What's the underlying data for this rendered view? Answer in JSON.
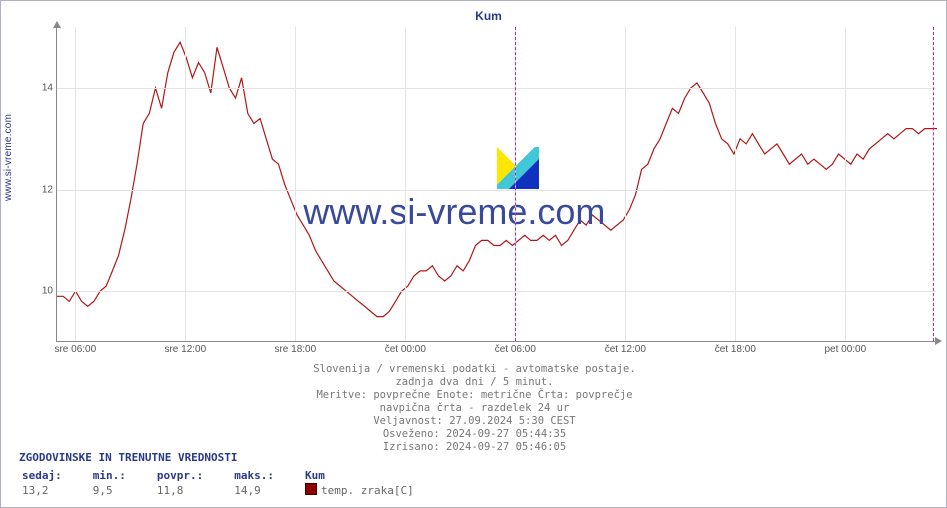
{
  "credit_vertical": "www.si-vreme.com",
  "chart": {
    "title": "Kum",
    "title_color": "#2a3a8a",
    "line_color": "#b01818",
    "background_color": "#ffffff",
    "grid_color": "#e4e4e4",
    "axis_color": "#888888",
    "day_marker_color": "#c020c0",
    "ylim": [
      9,
      15.2
    ],
    "yticks": [
      10,
      12,
      14
    ],
    "x_labels": [
      "sre 06:00",
      "sre 12:00",
      "sre 18:00",
      "čet 00:00",
      "čet 06:00",
      "čet 12:00",
      "čet 18:00",
      "pet 00:00"
    ],
    "x_hour_span": 48,
    "x_start_hour": 5,
    "day_markers_at_label_index": [
      4,
      8
    ],
    "series": [
      9.9,
      9.9,
      9.8,
      10.0,
      9.8,
      9.7,
      9.8,
      10.0,
      10.1,
      10.4,
      10.7,
      11.2,
      11.8,
      12.5,
      13.3,
      13.5,
      14.0,
      13.6,
      14.3,
      14.7,
      14.9,
      14.6,
      14.2,
      14.5,
      14.3,
      13.9,
      14.8,
      14.4,
      14.0,
      13.8,
      14.2,
      13.5,
      13.3,
      13.4,
      13.0,
      12.6,
      12.5,
      12.1,
      11.8,
      11.5,
      11.3,
      11.1,
      10.8,
      10.6,
      10.4,
      10.2,
      10.1,
      10.0,
      9.9,
      9.8,
      9.7,
      9.6,
      9.5,
      9.5,
      9.6,
      9.8,
      10.0,
      10.1,
      10.3,
      10.4,
      10.4,
      10.5,
      10.3,
      10.2,
      10.3,
      10.5,
      10.4,
      10.6,
      10.9,
      11.0,
      11.0,
      10.9,
      10.9,
      11.0,
      10.9,
      11.0,
      11.1,
      11.0,
      11.0,
      11.1,
      11.0,
      11.1,
      10.9,
      11.0,
      11.2,
      11.4,
      11.3,
      11.5,
      11.4,
      11.3,
      11.2,
      11.3,
      11.4,
      11.6,
      11.9,
      12.4,
      12.5,
      12.8,
      13.0,
      13.3,
      13.6,
      13.5,
      13.8,
      14.0,
      14.1,
      13.9,
      13.7,
      13.3,
      13.0,
      12.9,
      12.7,
      13.0,
      12.9,
      13.1,
      12.9,
      12.7,
      12.8,
      12.9,
      12.7,
      12.5,
      12.6,
      12.7,
      12.5,
      12.6,
      12.5,
      12.4,
      12.5,
      12.7,
      12.6,
      12.5,
      12.7,
      12.6,
      12.8,
      12.9,
      13.0,
      13.1,
      13.0,
      13.1,
      13.2,
      13.2,
      13.1,
      13.2,
      13.2,
      13.2
    ],
    "watermark_text": "www.si-vreme.com",
    "watermark_color": "#3a4a9a"
  },
  "meta": {
    "line1": "Slovenija / vremenski podatki - avtomatske postaje.",
    "line2": "zadnja dva dni / 5 minut.",
    "line3": "Meritve: povprečne  Enote: metrične  Črta: povprečje",
    "line4": "navpična črta - razdelek 24 ur",
    "line5": "Veljavnost: 27.09.2024 5:30 CEST",
    "line6": "Osveženo: 2024-09-27 05:44:35",
    "line7": "Izrisano: 2024-09-27 05:46:05"
  },
  "footer": {
    "title": "ZGODOVINSKE IN TRENUTNE VREDNOSTI",
    "labels": {
      "sedaj": "sedaj:",
      "min": "min.:",
      "povpr": "povpr.:",
      "maks": "maks.:",
      "station": "Kum"
    },
    "values": {
      "sedaj": "13,2",
      "min": "9,5",
      "povpr": "11,8",
      "maks": "14,9"
    },
    "legend_label": "temp. zraka[C]",
    "legend_color": "#8b0000"
  }
}
